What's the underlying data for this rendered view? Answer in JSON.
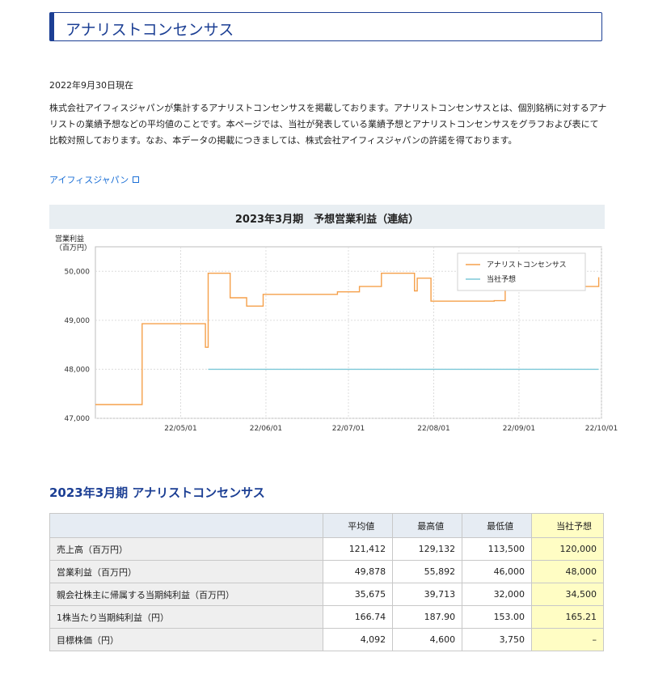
{
  "header": {
    "title": "アナリストコンセンサス"
  },
  "as_of": "2022年9月30日現在",
  "description": "株式会社アイフィスジャパンが集計するアナリストコンセンサスを掲載しております。アナリストコンセンサスとは、個別銘柄に対するアナリストの業績予想などの平均値のことです。本ページでは、当社が発表している業績予想とアナリストコンセンサスをグラフおよび表にて比較対照しております。なお、本データの掲載につきましては、株式会社アイフィスジャパンの許諾を得ております。",
  "link": {
    "label": "アイフィスジャパン",
    "icon": "external-link-icon"
  },
  "chart_data": {
    "type": "line",
    "title": "2023年3月期　予想営業利益（連結）",
    "ylabel": "営業利益\n（百万円）",
    "ylabel_line1": "営業利益",
    "ylabel_line2": "（百万円）",
    "ylim": [
      47000,
      50500
    ],
    "y_ticks": [
      "47,000",
      "48,000",
      "49,000",
      "50,000"
    ],
    "x_ticks": [
      "22/05/01",
      "22/06/01",
      "22/07/01",
      "22/08/01",
      "22/09/01",
      "22/10/01"
    ],
    "grid": true,
    "legend_placement": "top-right",
    "series": [
      {
        "name": "アナリストコンセンサス",
        "color": "#f5a04b",
        "step": true,
        "points": [
          [
            "2022-03-31",
            47280
          ],
          [
            "2022-04-17",
            47280
          ],
          [
            "2022-04-17",
            48930
          ],
          [
            "2022-05-10",
            48930
          ],
          [
            "2022-05-10",
            48450
          ],
          [
            "2022-05-11",
            48450
          ],
          [
            "2022-05-11",
            49960
          ],
          [
            "2022-05-19",
            49960
          ],
          [
            "2022-05-19",
            49460
          ],
          [
            "2022-05-25",
            49460
          ],
          [
            "2022-05-25",
            49290
          ],
          [
            "2022-05-31",
            49290
          ],
          [
            "2022-05-31",
            49530
          ],
          [
            "2022-06-27",
            49530
          ],
          [
            "2022-06-27",
            49580
          ],
          [
            "2022-07-05",
            49580
          ],
          [
            "2022-07-05",
            49690
          ],
          [
            "2022-07-13",
            49690
          ],
          [
            "2022-07-13",
            49960
          ],
          [
            "2022-07-25",
            49960
          ],
          [
            "2022-07-25",
            49600
          ],
          [
            "2022-07-26",
            49600
          ],
          [
            "2022-07-26",
            49860
          ],
          [
            "2022-07-31",
            49860
          ],
          [
            "2022-07-31",
            49390
          ],
          [
            "2022-08-23",
            49390
          ],
          [
            "2022-08-23",
            49400
          ],
          [
            "2022-08-27",
            49400
          ],
          [
            "2022-08-27",
            49620
          ],
          [
            "2022-08-30",
            49620
          ],
          [
            "2022-08-30",
            49690
          ],
          [
            "2022-09-02",
            49690
          ],
          [
            "2022-09-02",
            49720
          ],
          [
            "2022-09-04",
            49720
          ],
          [
            "2022-09-04",
            49690
          ],
          [
            "2022-09-30",
            49690
          ],
          [
            "2022-09-30",
            49880
          ]
        ]
      },
      {
        "name": "当社予想",
        "color": "#7dc8d8",
        "step": false,
        "points": [
          [
            "2022-05-11",
            48000
          ],
          [
            "2022-09-30",
            48000
          ]
        ]
      }
    ]
  },
  "table": {
    "title": "2023年3月期 アナリストコンセンサス",
    "columns": [
      "",
      "平均値",
      "最高値",
      "最低値",
      "当社予想"
    ],
    "rows": [
      {
        "label": "売上高（百万円）",
        "avg": "121,412",
        "high": "129,132",
        "low": "113,500",
        "company": "120,000"
      },
      {
        "label": "営業利益（百万円）",
        "avg": "49,878",
        "high": "55,892",
        "low": "46,000",
        "company": "48,000"
      },
      {
        "label": "親会社株主に帰属する当期純利益（百万円）",
        "avg": "35,675",
        "high": "39,713",
        "low": "32,000",
        "company": "34,500"
      },
      {
        "label": "1株当たり当期純利益（円）",
        "avg": "166.74",
        "high": "187.90",
        "low": "153.00",
        "company": "165.21"
      },
      {
        "label": "目標株価（円）",
        "avg": "4,092",
        "high": "4,600",
        "low": "3,750",
        "company": "–"
      }
    ]
  }
}
